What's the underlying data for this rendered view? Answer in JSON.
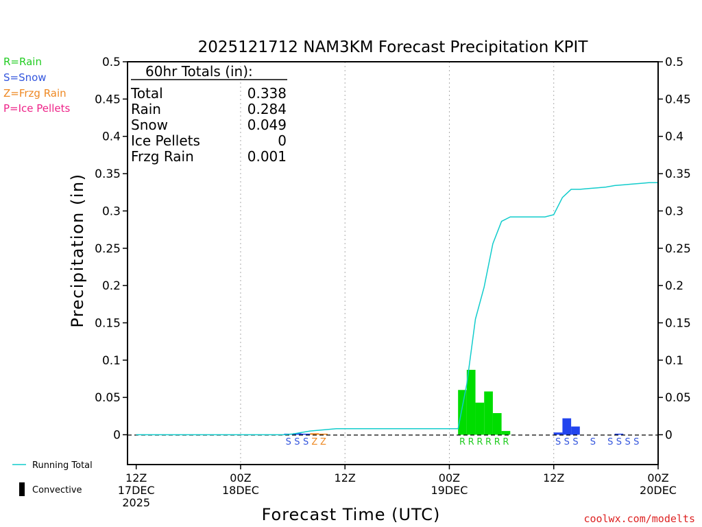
{
  "chart_data": {
    "type": "bar",
    "title": "2025121712 NAM3KM Forecast Precipitation KPIT",
    "xlabel": "Forecast Time (UTC)",
    "ylabel": "Precipitation (in)",
    "ylim": [
      -0.04,
      0.5
    ],
    "xlim_hours": [
      -1,
      60
    ],
    "y_ticks": [
      "0.5",
      "0.45",
      "0.4",
      "0.35",
      "0.3",
      "0.25",
      "0.2",
      "0.15",
      "0.1",
      "0.05",
      "0"
    ],
    "y_tick_values": [
      0.5,
      0.45,
      0.4,
      0.35,
      0.3,
      0.25,
      0.2,
      0.15,
      0.1,
      0.05,
      0
    ],
    "x_ticks": [
      {
        "hour": 0,
        "lines": [
          "12Z",
          "17DEC",
          "2025"
        ]
      },
      {
        "hour": 12,
        "lines": [
          "00Z",
          "18DEC"
        ]
      },
      {
        "hour": 24,
        "lines": [
          "12Z"
        ]
      },
      {
        "hour": 36,
        "lines": [
          "00Z",
          "19DEC"
        ]
      },
      {
        "hour": 48,
        "lines": [
          "12Z"
        ]
      },
      {
        "hour": 60,
        "lines": [
          "00Z",
          "20DEC"
        ]
      }
    ],
    "legend_types": [
      {
        "text": "R=Rain",
        "color": "#22cc22"
      },
      {
        "text": "S=Snow",
        "color": "#3355dd"
      },
      {
        "text": "Z=Frzg Rain",
        "color": "#ee8822"
      },
      {
        "text": "P=Ice Pellets",
        "color": "#ee2288"
      }
    ],
    "legend_series": {
      "running_total": "Running Total",
      "convective": "Convective"
    },
    "totals": {
      "header": "60hr Totals (in):",
      "rows": [
        {
          "label": "Total",
          "value": "0.338"
        },
        {
          "label": "Rain",
          "value": "0.284"
        },
        {
          "label": "Snow",
          "value": "0.049"
        },
        {
          "label": "Ice Pellets",
          "value": "0"
        },
        {
          "label": "Frzg Rain",
          "value": "0.001"
        }
      ]
    },
    "bars": [
      {
        "hour": 18,
        "value": 0.001,
        "type": "S"
      },
      {
        "hour": 19,
        "value": 0.002,
        "type": "S"
      },
      {
        "hour": 20,
        "value": 0.001,
        "type": "S"
      },
      {
        "hour": 21,
        "value": 0.002,
        "type": "Z"
      },
      {
        "hour": 22,
        "value": 0.001,
        "type": "Z"
      },
      {
        "hour": 38,
        "value": 0.06,
        "type": "R"
      },
      {
        "hour": 39,
        "value": 0.087,
        "type": "R"
      },
      {
        "hour": 40,
        "value": 0.043,
        "type": "R"
      },
      {
        "hour": 41,
        "value": 0.058,
        "type": "R"
      },
      {
        "hour": 42,
        "value": 0.029,
        "type": "R"
      },
      {
        "hour": 43,
        "value": 0.005,
        "type": "R"
      },
      {
        "hour": 49,
        "value": 0.003,
        "type": "S"
      },
      {
        "hour": 50,
        "value": 0.022,
        "type": "S"
      },
      {
        "hour": 51,
        "value": 0.011,
        "type": "S"
      },
      {
        "hour": 53,
        "value": 0.0,
        "type": "S"
      },
      {
        "hour": 55,
        "value": 0.0,
        "type": "S"
      },
      {
        "hour": 56,
        "value": 0.001,
        "type": "S"
      },
      {
        "hour": 57,
        "value": 0.0,
        "type": "S"
      },
      {
        "hour": 58,
        "value": 0.0,
        "type": "S"
      }
    ],
    "running_total": {
      "hours": [
        0,
        17,
        18,
        19,
        20,
        21,
        22,
        23,
        24,
        37,
        38,
        39,
        40,
        41,
        42,
        43,
        44,
        47,
        48,
        49,
        50,
        51,
        52,
        53,
        54,
        55,
        56,
        57,
        58,
        59,
        60
      ],
      "values": [
        0,
        0,
        0.001,
        0.003,
        0.005,
        0.006,
        0.007,
        0.008,
        0.008,
        0.008,
        0.068,
        0.155,
        0.198,
        0.256,
        0.286,
        0.292,
        0.292,
        0.292,
        0.295,
        0.318,
        0.329,
        0.329,
        0.33,
        0.331,
        0.332,
        0.334,
        0.335,
        0.336,
        0.337,
        0.338,
        0.338
      ]
    },
    "colors": {
      "rain": "#00dd00",
      "snow": "#2244ee",
      "frzg": "#ee8822",
      "ice": "#ee2288",
      "running_total": "#11cccc",
      "grid": "#aaaaaa"
    },
    "credit": "coolwx.com/modelts"
  }
}
